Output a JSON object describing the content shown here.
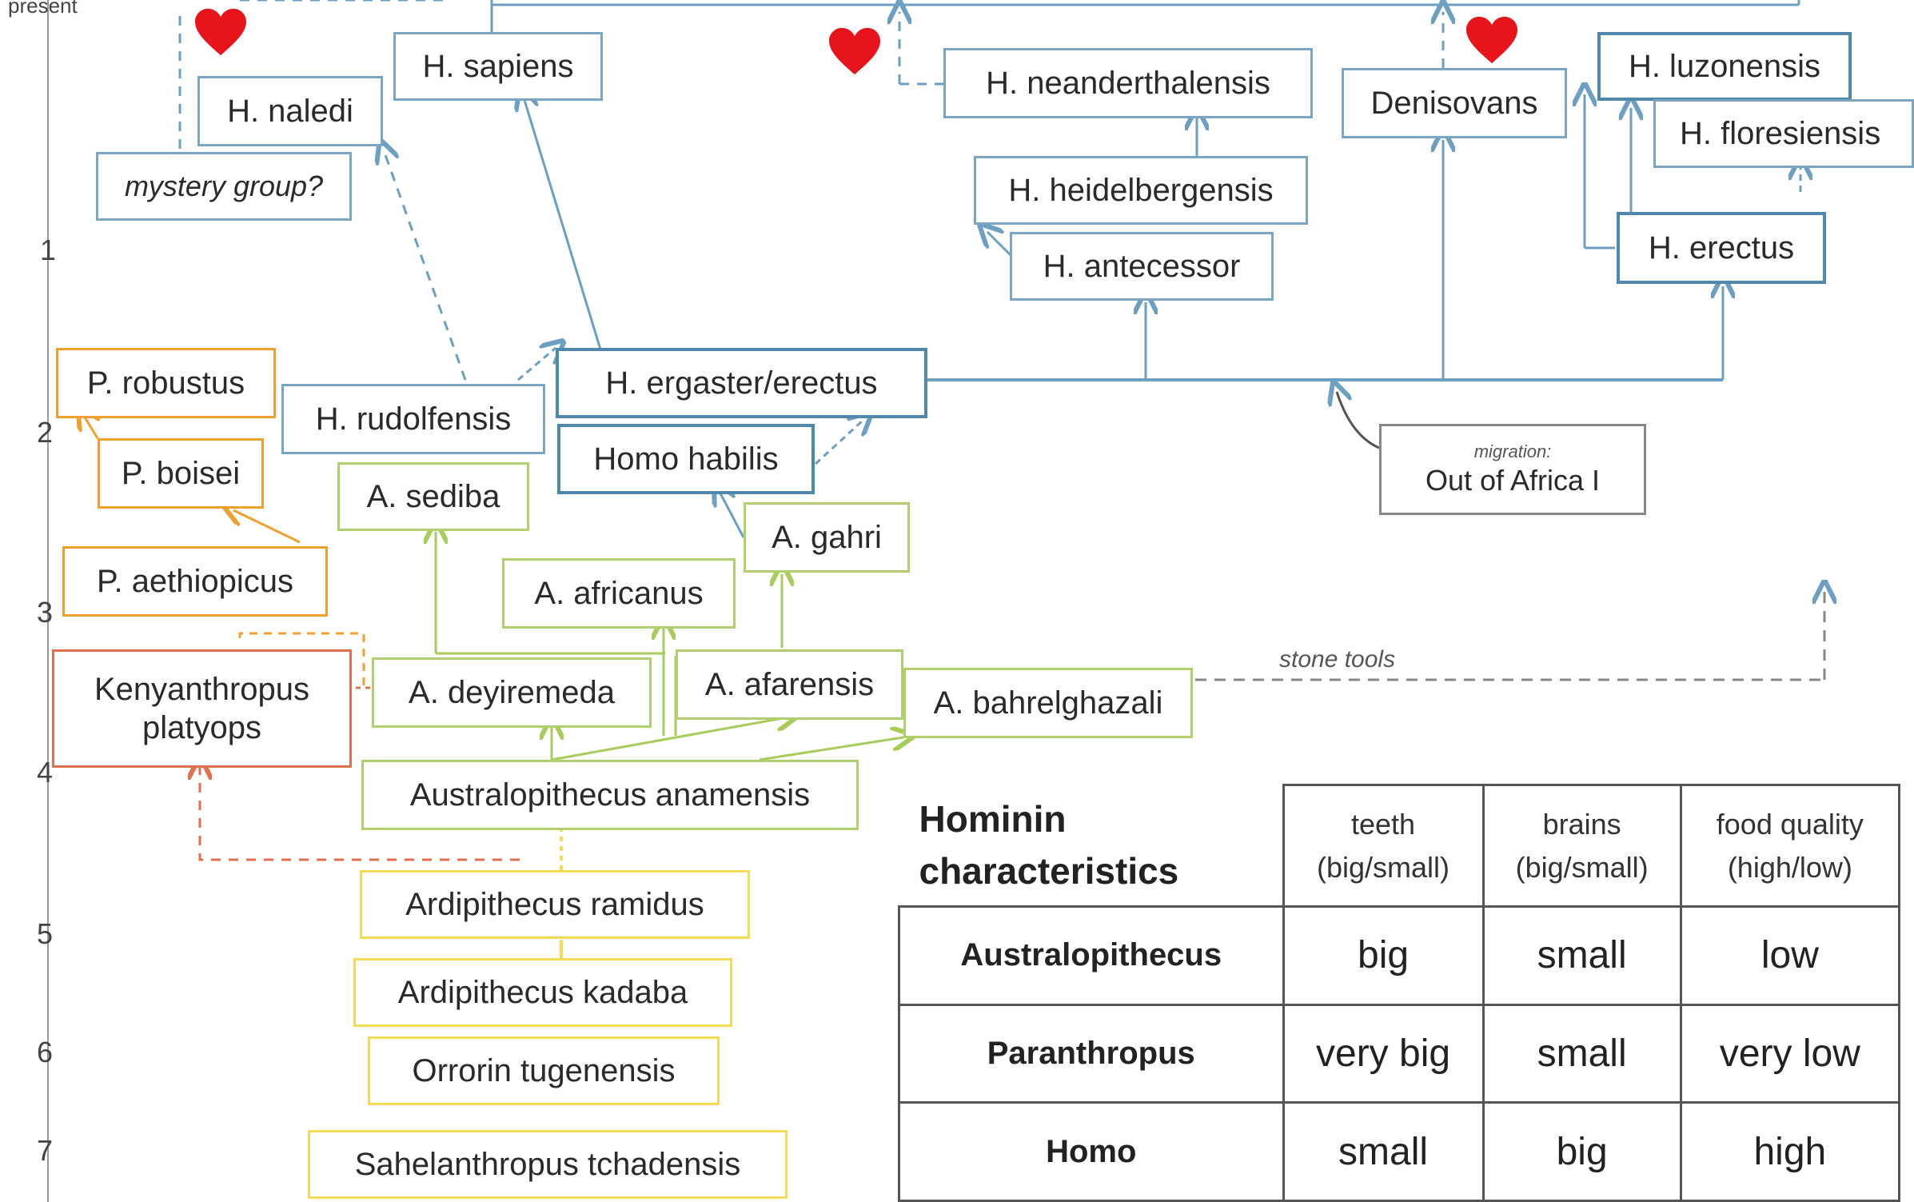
{
  "timeline": {
    "top_label": "present",
    "ticks": [
      "1",
      "2",
      "3",
      "4",
      "5",
      "6",
      "7"
    ]
  },
  "nodes": {
    "h_sapiens": "H. sapiens",
    "h_naledi": "H. naledi",
    "mystery_group": "mystery group?",
    "h_neanderthalensis": "H. neanderthalensis",
    "denisovans": "Denisovans",
    "h_luzonensis": "H. luzonensis",
    "h_floresiensis": "H. floresiensis",
    "h_heidelbergensis": "H. heidelbergensis",
    "h_antecessor": "H. antecessor",
    "h_erectus": "H. erectus",
    "p_robustus": "P. robustus",
    "h_rudolfensis": "H. rudolfensis",
    "h_ergaster_erectus": "H. ergaster/erectus",
    "homo_habilis": "Homo habilis",
    "p_boisei": "P. boisei",
    "a_sediba": "A. sediba",
    "a_gahri": "A. gahri",
    "p_aethiopicus": "P. aethiopicus",
    "a_africanus": "A. africanus",
    "kenyanthropus_line1": "Kenyanthropus",
    "kenyanthropus_line2": "platyops",
    "a_deyiremeda": "A. deyiremeda",
    "a_afarensis": "A. afarensis",
    "a_bahrelghazali": "A. bahrelghazali",
    "australopithecus_anamensis": "Australopithecus anamensis",
    "ardipithecus_ramidus": "Ardipithecus ramidus",
    "ardipithecus_kadaba": "Ardipithecus kadaba",
    "orrorin_tugenensis": "Orrorin tugenensis",
    "sahelanthropus_tchadensis": "Sahelanthropus tchadensis"
  },
  "annotations": {
    "migration_small": "migration:",
    "migration_main": "Out of Africa I",
    "stone_tools": "stone tools"
  },
  "colors": {
    "homo_blue": "#7aa6c4",
    "homo_blue_dark": "#4f87ad",
    "paranthropus_orange": "#f0a030",
    "kenyanthropus_red": "#e0704f",
    "australopithecus_green": "#b0d070",
    "early_hominin_yellow": "#f2dc5a",
    "heart_red": "#e8141c"
  },
  "icons": [
    "heart-icon"
  ],
  "table": {
    "title_line1": "Hominin",
    "title_line2": "characteristics",
    "columns": [
      {
        "line1": "teeth",
        "line2": "(big/small)"
      },
      {
        "line1": "brains",
        "line2": "(big/small)"
      },
      {
        "line1": "food quality",
        "line2": "(high/low)"
      }
    ],
    "rows": [
      {
        "label": "Australopithecus",
        "cells": [
          "big",
          "small",
          "low"
        ]
      },
      {
        "label": "Paranthropus",
        "cells": [
          "very big",
          "small",
          "very low"
        ]
      },
      {
        "label": "Homo",
        "cells": [
          "small",
          "big",
          "high"
        ]
      }
    ]
  }
}
